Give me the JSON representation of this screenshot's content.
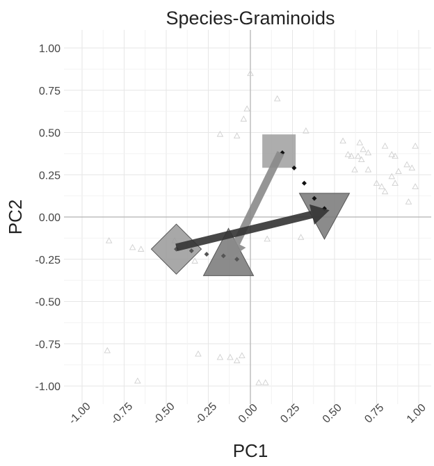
{
  "chart_data": {
    "type": "scatter",
    "title": "Species-Graminoids",
    "xlabel": "PC1",
    "ylabel": "PC2",
    "xlim": [
      -1.0,
      1.0
    ],
    "ylim": [
      -1.0,
      1.0
    ],
    "x_ticks": [
      "-1.00",
      "-0.75",
      "-0.50",
      "-0.25",
      "0.00",
      "0.25",
      "0.50",
      "0.75",
      "1.00"
    ],
    "y_ticks": [
      "1.00",
      "0.75",
      "0.50",
      "0.25",
      "0.00",
      "-0.25",
      "-0.50",
      "-0.75",
      "-1.00"
    ],
    "grid": true,
    "zero_lines": true,
    "background_points": [
      [
        -0.84,
        -0.14
      ],
      [
        -0.7,
        -0.18
      ],
      [
        -0.65,
        -0.19
      ],
      [
        -0.67,
        -0.97
      ],
      [
        -0.85,
        -0.79
      ],
      [
        -0.31,
        -0.81
      ],
      [
        -0.18,
        -0.83
      ],
      [
        -0.12,
        -0.83
      ],
      [
        -0.08,
        -0.85
      ],
      [
        -0.05,
        -0.82
      ],
      [
        0.05,
        -0.98
      ],
      [
        0.09,
        -0.98
      ],
      [
        0.0,
        0.85
      ],
      [
        0.16,
        0.7
      ],
      [
        -0.02,
        0.64
      ],
      [
        -0.04,
        0.58
      ],
      [
        -0.08,
        0.48
      ],
      [
        -0.18,
        0.49
      ],
      [
        0.33,
        0.51
      ],
      [
        0.1,
        -0.13
      ],
      [
        0.3,
        -0.12
      ],
      [
        -0.33,
        -0.26
      ],
      [
        -0.45,
        -0.14
      ],
      [
        0.6,
        0.36
      ],
      [
        0.64,
        0.36
      ],
      [
        0.66,
        0.34
      ],
      [
        0.67,
        0.4
      ],
      [
        0.7,
        0.38
      ],
      [
        0.65,
        0.44
      ],
      [
        0.58,
        0.37
      ],
      [
        0.75,
        0.2
      ],
      [
        0.78,
        0.18
      ],
      [
        0.8,
        0.15
      ],
      [
        0.84,
        0.24
      ],
      [
        0.86,
        0.2
      ],
      [
        0.88,
        0.27
      ],
      [
        0.93,
        0.31
      ],
      [
        0.96,
        0.29
      ],
      [
        0.98,
        0.18
      ],
      [
        0.84,
        0.37
      ],
      [
        0.86,
        0.36
      ],
      [
        0.8,
        0.42
      ],
      [
        0.62,
        0.28
      ],
      [
        0.55,
        0.45
      ],
      [
        0.98,
        0.42
      ],
      [
        0.7,
        0.28
      ],
      [
        0.94,
        0.09
      ]
    ],
    "shapes": [
      {
        "shape": "square",
        "x": 0.17,
        "y": 0.39,
        "color": "#999999"
      },
      {
        "shape": "diamond",
        "x": -0.44,
        "y": -0.19,
        "color": "#999999"
      },
      {
        "shape": "triangle-up",
        "x": -0.13,
        "y": -0.24,
        "color": "#777777"
      },
      {
        "shape": "triangle-down",
        "x": 0.44,
        "y": 0.05,
        "color": "#777777"
      }
    ],
    "arrows": [
      {
        "from": [
          0.18,
          0.38
        ],
        "to": [
          -0.13,
          -0.25
        ],
        "color": "#8a8a8a",
        "width": 11
      },
      {
        "from": [
          -0.44,
          -0.18
        ],
        "to": [
          0.47,
          0.04
        ],
        "color": "#333333",
        "width": 11
      }
    ],
    "dotted_paths": [
      {
        "points": [
          [
            0.19,
            0.38
          ],
          [
            0.26,
            0.29
          ],
          [
            0.32,
            0.2
          ],
          [
            0.38,
            0.11
          ],
          [
            0.44,
            0.05
          ]
        ],
        "color": "#111111"
      },
      {
        "points": [
          [
            -0.44,
            -0.19
          ],
          [
            -0.35,
            -0.2
          ],
          [
            -0.26,
            -0.22
          ],
          [
            -0.16,
            -0.23
          ],
          [
            -0.08,
            -0.25
          ]
        ],
        "color": "#555555"
      }
    ]
  }
}
